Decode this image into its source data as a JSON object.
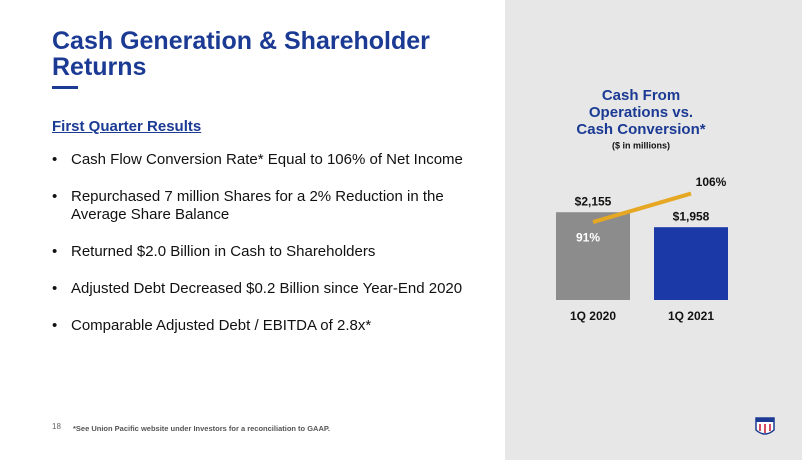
{
  "header": {
    "title": "Cash Generation & Shareholder Returns"
  },
  "section": {
    "heading": "First Quarter Results",
    "bullets": [
      "Cash Flow Conversion Rate* Equal to 106% of Net Income",
      "Repurchased 7 million Shares for a 2% Reduction in the Average Share Balance",
      "Returned $2.0 Billion in Cash to Shareholders",
      "Adjusted Debt Decreased $0.2 Billion since Year-End 2020",
      "Comparable Adjusted Debt / EBITDA of 2.8x*"
    ]
  },
  "footer": {
    "page": "18",
    "note": "*See Union Pacific website under Investors for a reconciliation to GAAP."
  },
  "chart_data": {
    "type": "bar",
    "title": "Cash From Operations vs. Cash Conversion*",
    "subtitle": "($ in millions)",
    "categories": [
      "1Q 2020",
      "1Q 2021"
    ],
    "ylim": [
      1000,
      3500
    ],
    "y2lim": [
      50,
      150
    ],
    "series": [
      {
        "name": "Cash From Operations",
        "type": "bar",
        "colors": [
          "#8c8c8c",
          "#1b3aa8"
        ],
        "values": [
          2155,
          1958
        ],
        "value_labels": [
          "$2,155",
          "$1,958"
        ]
      },
      {
        "name": "Cash Conversion",
        "type": "line",
        "axis": "y2",
        "color": "#e6a823",
        "values": [
          91,
          106
        ],
        "value_labels": [
          "91%",
          "106%"
        ]
      }
    ]
  }
}
